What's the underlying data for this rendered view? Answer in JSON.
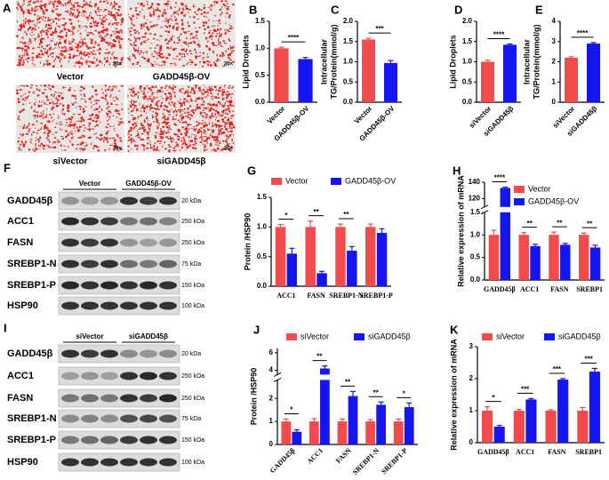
{
  "figure_a": {
    "label": "A",
    "images": [
      {
        "caption": "Vector",
        "scale": "20×"
      },
      {
        "caption": "GADD45β-OV",
        "scale": "20×"
      },
      {
        "caption": "siVector",
        "scale": "20×"
      },
      {
        "caption": "siGADD45β",
        "scale": "20×"
      }
    ]
  },
  "blot_f": {
    "label": "F",
    "groups": [
      "Vector",
      "GADD45β-OV"
    ],
    "rows": [
      {
        "name": "GADD45β",
        "size": "20 kDa"
      },
      {
        "name": "ACC1",
        "size": "250 kDa"
      },
      {
        "name": "FASN",
        "size": "250 kDa"
      },
      {
        "name": "SREBP1-N",
        "size": "75 kDa"
      },
      {
        "name": "SREBP1-P",
        "size": "150 kDa"
      },
      {
        "name": "HSP90",
        "size": "100 kDa"
      }
    ]
  },
  "blot_i": {
    "label": "I",
    "groups": [
      "siVector",
      "siGADD45β"
    ],
    "rows": [
      {
        "name": "GADD45β",
        "size": "20 kDa"
      },
      {
        "name": "ACC1",
        "size": "250 kDa"
      },
      {
        "name": "FASN",
        "size": "250 kDa"
      },
      {
        "name": "SREBP1-N",
        "size": "75 kDa"
      },
      {
        "name": "SREBP1-P",
        "size": "150 kDa"
      },
      {
        "name": "HSP90",
        "size": "100 kDa"
      }
    ]
  },
  "chart_data": [
    {
      "type": "bar",
      "label": "B",
      "ylabel": [
        "Lipid Droplets"
      ],
      "categories": [
        "Vector",
        "GADD45β-OV"
      ],
      "values": [
        1.0,
        0.8
      ],
      "errors": [
        0.02,
        0.03
      ],
      "colors": [
        "#f24b4b",
        "#1515f0"
      ],
      "annotation": "****",
      "ylim": [
        0,
        1.5
      ],
      "yticks": [
        {
          "value": 0,
          "label": "0.0"
        },
        {
          "value": 0.5,
          "label": "0.5"
        },
        {
          "value": 1,
          "label": "1.0"
        },
        {
          "value": 1.5,
          "label": "1.5"
        }
      ]
    },
    {
      "type": "bar",
      "label": "C",
      "ylabel": [
        "Intracellular",
        "TG/Protein(mmol/g)"
      ],
      "categories": [
        "Vector",
        "GADD45β-OV"
      ],
      "values": [
        1.55,
        0.97
      ],
      "errors": [
        0.03,
        0.06
      ],
      "colors": [
        "#f24b4b",
        "#1515f0"
      ],
      "annotation": "***",
      "ylim": [
        0,
        2.0
      ],
      "yticks": [
        {
          "value": 0,
          "label": "0.0"
        },
        {
          "value": 0.5,
          "label": "0.5"
        },
        {
          "value": 1,
          "label": "1.0"
        },
        {
          "value": 1.5,
          "label": "1.5"
        },
        {
          "value": 2,
          "label": "2.0"
        }
      ]
    },
    {
      "type": "bar",
      "label": "D",
      "ylabel": [
        "Lipid Droplets"
      ],
      "categories": [
        "siVector",
        "siGADD45β"
      ],
      "values": [
        1.0,
        1.42
      ],
      "errors": [
        0.04,
        0.02
      ],
      "colors": [
        "#f24b4b",
        "#1515f0"
      ],
      "annotation": "****",
      "ylim": [
        0,
        2.0
      ],
      "yticks": [
        {
          "value": 0,
          "label": "0.0"
        },
        {
          "value": 0.5,
          "label": "0.5"
        },
        {
          "value": 1,
          "label": "1.0"
        },
        {
          "value": 1.5,
          "label": "1.5"
        },
        {
          "value": 2,
          "label": "2.0"
        }
      ]
    },
    {
      "type": "bar",
      "label": "E",
      "ylabel": [
        "Intracellular",
        "TG/Protein(mmol/g)"
      ],
      "categories": [
        "siVector",
        "siGADD45β"
      ],
      "values": [
        2.2,
        2.9
      ],
      "errors": [
        0.05,
        0.05
      ],
      "colors": [
        "#f24b4b",
        "#1515f0"
      ],
      "annotation": "****",
      "ylim": [
        0,
        4
      ],
      "yticks": [
        0,
        1,
        2,
        3,
        4
      ]
    },
    {
      "type": "grouped_bar",
      "label": "G",
      "ylabel": [
        "Protein /HSP90"
      ],
      "categories": [
        "ACC1",
        "FASN",
        "SREBP1-N",
        "SREBP1-P"
      ],
      "series": [
        {
          "name": "Vector",
          "color": "#f24b4b",
          "values": [
            1,
            1,
            1,
            1
          ],
          "errors": [
            0.04,
            0.1,
            0.05,
            0.05
          ]
        },
        {
          "name": "GADD45β-OV",
          "color": "#1515f0",
          "values": [
            0.55,
            0.22,
            0.6,
            0.9
          ],
          "errors": [
            0.09,
            0.03,
            0.07,
            0.07
          ]
        }
      ],
      "annotations": [
        "*",
        "**",
        "**",
        null
      ],
      "ylim": [
        0,
        1.5
      ],
      "yticks": [
        {
          "value": 0,
          "label": "0.0"
        },
        {
          "value": 0.5,
          "label": "0.5"
        },
        {
          "value": 1,
          "label": "1.0"
        },
        {
          "value": 1.5,
          "label": "1.5"
        }
      ]
    },
    {
      "type": "grouped_bar",
      "label": "H",
      "ylabel": [
        "Relative expression of mRNA"
      ],
      "categories": [
        "GADD45β",
        "ACC1",
        "FASN",
        "SREBP1"
      ],
      "series": [
        {
          "name": "Vector",
          "color": "#f24b4b",
          "values": [
            1,
            1,
            1,
            1
          ],
          "errors": [
            0.1,
            0.05,
            0.06,
            0.04
          ]
        },
        {
          "name": "GADD45β-OV",
          "color": "#1515f0",
          "values": [
            133,
            0.75,
            0.78,
            0.72
          ],
          "errors": [
            1,
            0.04,
            0.03,
            0.05
          ]
        }
      ],
      "annotations": [
        "****",
        "**",
        "**",
        "**"
      ],
      "ylim": [
        0,
        140
      ],
      "ybreak": [
        1.5,
        110
      ],
      "yticks": [
        {
          "value": 0,
          "label": "0.0"
        },
        {
          "value": 0.5,
          "label": "0.5"
        },
        {
          "value": 1,
          "label": "1.0"
        },
        {
          "value": 1.5,
          "label": "1.5"
        },
        120,
        140
      ]
    },
    {
      "type": "grouped_bar",
      "label": "J",
      "ylabel": [
        "Protein /HSP90"
      ],
      "categories": [
        "GADD45β",
        "ACC1",
        "FASN",
        "SREBP1-N",
        "SREBP1-P"
      ],
      "series": [
        {
          "name": "siVector",
          "color": "#f24b4b",
          "values": [
            1,
            1,
            1,
            1,
            1
          ],
          "errors": [
            0.1,
            0.12,
            0.1,
            0.08,
            0.1
          ]
        },
        {
          "name": "siGADD45β",
          "color": "#1515f0",
          "values": [
            0.55,
            4.2,
            2.1,
            1.72,
            1.62
          ],
          "errors": [
            0.08,
            0.3,
            0.2,
            0.12,
            0.18
          ]
        }
      ],
      "annotations": [
        "*",
        "**",
        "**",
        "**",
        "*"
      ],
      "ylim": [
        0,
        6.5
      ],
      "ybreak": [
        2.8,
        3.5
      ],
      "yticks": [
        0,
        1,
        2,
        4,
        6
      ]
    },
    {
      "type": "grouped_bar",
      "label": "K",
      "ylabel": [
        "Relative expression of mRNA"
      ],
      "categories": [
        "GADD45β",
        "ACC1",
        "FASN",
        "SREBP1"
      ],
      "series": [
        {
          "name": "siVector",
          "color": "#f24b4b",
          "values": [
            1,
            1,
            1,
            1
          ],
          "errors": [
            0.12,
            0.04,
            0.03,
            0.1
          ]
        },
        {
          "name": "siGADD45β",
          "color": "#1515f0",
          "values": [
            0.5,
            1.35,
            1.97,
            2.22
          ],
          "errors": [
            0.04,
            0.03,
            0.03,
            0.1
          ]
        }
      ],
      "annotations": [
        "*",
        "***",
        "***",
        "***"
      ],
      "ylim": [
        0,
        3
      ],
      "yticks": [
        0,
        1,
        2,
        3
      ]
    }
  ]
}
